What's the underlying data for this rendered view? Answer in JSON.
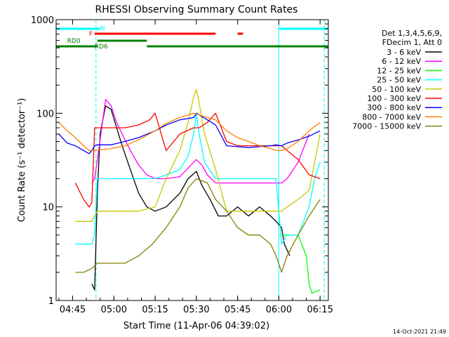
{
  "chart_data": {
    "type": "line",
    "title": "RHESSI Observing Summary Count Rates",
    "xlabel": "Start Time (11-Apr-06 04:39:02)",
    "ylabel": "Count Rate (s⁻¹ detector⁻¹)",
    "y_scale": "log",
    "ylim": [
      1,
      1000
    ],
    "xlim_minutes_after_0439": [
      0,
      99
    ],
    "x_ticks": [
      {
        "label": "04:45",
        "min": 6
      },
      {
        "label": "05:00",
        "min": 21
      },
      {
        "label": "05:15",
        "min": 36
      },
      {
        "label": "05:30",
        "min": 51
      },
      {
        "label": "05:45",
        "min": 66
      },
      {
        "label": "06:00",
        "min": 81
      },
      {
        "label": "06:15",
        "min": 96
      }
    ],
    "y_ticks": [
      {
        "label": "1",
        "value": 1
      },
      {
        "label": "10",
        "value": 10
      },
      {
        "label": "100",
        "value": 100
      },
      {
        "label": "1000",
        "value": 1000
      }
    ],
    "legend_title": [
      "Det 1,3,4,5,6,9,",
      "FDecim 1, Att 0"
    ],
    "series": [
      {
        "name": "3 - 6 keV",
        "color": "#000000",
        "x": [
          0,
          7,
          10,
          13,
          14,
          15,
          16,
          18,
          20,
          22,
          24,
          27,
          30,
          33,
          36,
          40,
          45,
          48,
          51,
          53,
          56,
          59,
          62,
          66,
          70,
          74,
          78,
          80,
          82,
          83,
          85,
          90,
          96,
          99
        ],
        "y": [
          null,
          null,
          null,
          1.5,
          1.3,
          14,
          60,
          120,
          110,
          70,
          45,
          25,
          14,
          10,
          9,
          10,
          14,
          20,
          24,
          17,
          12,
          8,
          8,
          10,
          8,
          10,
          8,
          7,
          6,
          4,
          3,
          null,
          null,
          null
        ]
      },
      {
        "name": "6 - 12 keV",
        "color": "#ff00ff",
        "x": [
          0,
          7,
          10,
          13,
          14,
          15,
          18,
          20,
          22,
          24,
          27,
          30,
          33,
          36,
          40,
          45,
          50,
          51,
          53,
          55,
          58,
          62,
          66,
          70,
          75,
          78,
          80,
          82,
          84,
          88,
          92,
          96,
          99
        ],
        "y": [
          null,
          null,
          null,
          18,
          20,
          32,
          140,
          120,
          80,
          60,
          40,
          28,
          22,
          20,
          20,
          21,
          30,
          32,
          28,
          22,
          18,
          18,
          18,
          18,
          18,
          18,
          18,
          18,
          20,
          30,
          60,
          null,
          null
        ]
      },
      {
        "name": "12 - 25 keV",
        "color": "#00ff00",
        "x": [
          0,
          7,
          10,
          13,
          14,
          15,
          20,
          25,
          30,
          36,
          40,
          45,
          48,
          51,
          54,
          58,
          62,
          66,
          70,
          74,
          78,
          80,
          82,
          84,
          88,
          91,
          92,
          93,
          96,
          99
        ],
        "y": [
          null,
          null,
          null,
          null,
          null,
          null,
          null,
          null,
          null,
          null,
          null,
          null,
          null,
          null,
          null,
          null,
          null,
          null,
          null,
          null,
          null,
          null,
          5,
          5,
          5,
          3,
          1.5,
          1.2,
          1.3,
          null
        ]
      },
      {
        "name": "25 - 50 keV",
        "color": "#00ffff",
        "x": [
          0,
          7,
          10,
          13,
          14,
          15,
          20,
          25,
          30,
          36,
          40,
          45,
          48,
          50,
          51,
          52,
          54,
          58,
          62,
          66,
          70,
          74,
          78,
          80,
          82,
          84,
          88,
          92,
          94,
          96,
          99
        ],
        "y": [
          null,
          4,
          4,
          4,
          5,
          20,
          20,
          20,
          20,
          20,
          22,
          25,
          35,
          60,
          100,
          60,
          30,
          20,
          20,
          20,
          20,
          20,
          20,
          20,
          4,
          5,
          5,
          10,
          20,
          30,
          null
        ]
      },
      {
        "name": "50 - 100 keV",
        "color": "#c8c800",
        "x": [
          0,
          7,
          10,
          13,
          14,
          15,
          20,
          25,
          30,
          36,
          40,
          45,
          48,
          50,
          51,
          52,
          54,
          58,
          62,
          66,
          70,
          74,
          78,
          80,
          82,
          84,
          88,
          92,
          96,
          99
        ],
        "y": [
          null,
          7,
          7,
          7,
          8,
          9,
          9,
          9,
          9,
          10,
          20,
          40,
          80,
          150,
          180,
          130,
          60,
          25,
          9,
          9,
          9,
          9,
          9,
          9,
          9,
          10,
          12,
          15,
          60,
          null
        ]
      },
      {
        "name": "100 - 300 keV",
        "color": "#ff0000",
        "x": [
          0,
          7,
          10,
          12,
          13,
          14,
          15,
          20,
          25,
          30,
          34,
          36,
          40,
          45,
          50,
          52,
          55,
          58,
          62,
          66,
          70,
          74,
          78,
          80,
          82,
          84,
          88,
          92,
          96,
          99
        ],
        "y": [
          null,
          18,
          12,
          10,
          11,
          70,
          70,
          70,
          70,
          75,
          85,
          100,
          40,
          60,
          70,
          70,
          80,
          100,
          50,
          45,
          45,
          45,
          45,
          45,
          45,
          40,
          32,
          22,
          20,
          null
        ]
      },
      {
        "name": "300 - 800 keV",
        "color": "#0000ff",
        "x": [
          0,
          1,
          4,
          7,
          10,
          12,
          13,
          14,
          15,
          20,
          25,
          30,
          36,
          40,
          45,
          50,
          51,
          55,
          58,
          62,
          66,
          70,
          74,
          78,
          80,
          82,
          84,
          88,
          92,
          96,
          99
        ],
        "y": [
          null,
          60,
          48,
          45,
          40,
          37,
          40,
          45,
          46,
          46,
          50,
          55,
          65,
          75,
          85,
          90,
          100,
          85,
          75,
          45,
          44,
          43,
          44,
          45,
          46,
          45,
          48,
          52,
          57,
          65,
          null
        ]
      },
      {
        "name": "800 - 7000 keV",
        "color": "#ff8000",
        "x": [
          0,
          1,
          4,
          7,
          10,
          12,
          14,
          20,
          25,
          30,
          36,
          40,
          45,
          50,
          55,
          58,
          62,
          66,
          70,
          74,
          78,
          80,
          82,
          84,
          88,
          92,
          96,
          99
        ],
        "y": [
          null,
          80,
          65,
          55,
          45,
          40,
          40,
          42,
          45,
          52,
          65,
          78,
          90,
          100,
          90,
          85,
          65,
          55,
          50,
          45,
          42,
          40,
          40,
          42,
          50,
          65,
          80,
          null
        ]
      },
      {
        "name": "7000 - 15000 keV",
        "color": "#808000",
        "x": [
          0,
          7,
          10,
          13,
          15,
          20,
          25,
          30,
          35,
          40,
          45,
          48,
          51,
          55,
          58,
          62,
          66,
          70,
          74,
          78,
          80,
          82,
          84,
          88,
          92,
          96,
          99
        ],
        "y": [
          null,
          2,
          2,
          2.2,
          2.5,
          2.5,
          2.5,
          3,
          4,
          6,
          10,
          16,
          20,
          18,
          12,
          9,
          6,
          5,
          5,
          4,
          3,
          2,
          3,
          5,
          8,
          12,
          null
        ]
      }
    ],
    "annotations": [
      {
        "text": "N",
        "kind": "night",
        "color": "#00ffff"
      },
      {
        "text": "F",
        "kind": "flare",
        "color": "#ff0000"
      },
      {
        "text": "RD0",
        "kind": "decimation",
        "color": "#008000"
      },
      {
        "text": "RD6",
        "kind": "decimation",
        "color": "#008000"
      }
    ],
    "status_bars": {
      "night": {
        "color": "#00ffff",
        "segments": [
          [
            0,
            16
          ],
          [
            81,
            99
          ]
        ]
      },
      "flare": {
        "color": "#ff0000",
        "segments": [
          [
            14,
            58
          ],
          [
            66,
            68
          ]
        ]
      },
      "decim_top": {
        "color": "#008000",
        "segments": [
          [
            15,
            33
          ]
        ]
      },
      "decim_bottom": {
        "color": "#008000",
        "segments": [
          [
            0,
            15
          ],
          [
            33,
            58
          ],
          [
            58,
            79
          ],
          [
            79,
            99
          ]
        ]
      }
    },
    "vertical_lines": [
      {
        "min": 0,
        "color": "#00ffff",
        "style": "solid"
      },
      {
        "min": 14.5,
        "color": "#00ffff",
        "style": "dashed"
      },
      {
        "min": 81,
        "color": "#00ffff",
        "style": "solid"
      },
      {
        "min": 97.5,
        "color": "#00ffff",
        "style": "dashed"
      }
    ],
    "grid": false,
    "legend_position": "right",
    "timestamp": "14-Oct-2021 21:49"
  }
}
